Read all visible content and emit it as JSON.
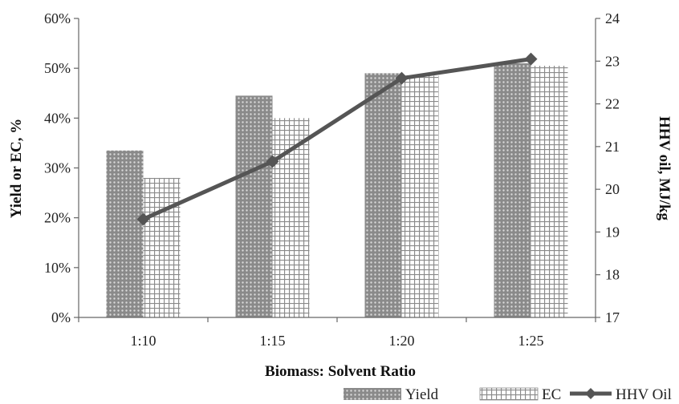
{
  "chart_data": {
    "type": "bar",
    "categories": [
      "1:10",
      "1:15",
      "1:20",
      "1:25"
    ],
    "series": [
      {
        "name": "Yield",
        "type": "bar",
        "axis": "left",
        "pattern": "dots",
        "values": [
          33.5,
          44.5,
          49.0,
          51.0
        ]
      },
      {
        "name": "EC",
        "type": "bar",
        "axis": "left",
        "pattern": "grid",
        "values": [
          28.0,
          40.0,
          48.5,
          50.5
        ]
      },
      {
        "name": "HHV Oil",
        "type": "line",
        "axis": "right",
        "marker": "diamond",
        "values": [
          19.3,
          20.65,
          22.6,
          23.05
        ]
      }
    ],
    "xlabel": "Biomass: Solvent Ratio",
    "ylabel": "Yield or EC, %",
    "y2label": "HHV oil, MJ/kg",
    "ylim": [
      0,
      60
    ],
    "yticks": [
      "0%",
      "10%",
      "20%",
      "30%",
      "40%",
      "50%",
      "60%"
    ],
    "y2lim": [
      17,
      24
    ],
    "y2ticks": [
      "17",
      "18",
      "19",
      "20",
      "21",
      "22",
      "23",
      "24"
    ],
    "grid": false,
    "legend": "bottom-right",
    "colors": {
      "bar": "#8c8c8c",
      "line": "#555555",
      "axis": "#666666"
    }
  }
}
